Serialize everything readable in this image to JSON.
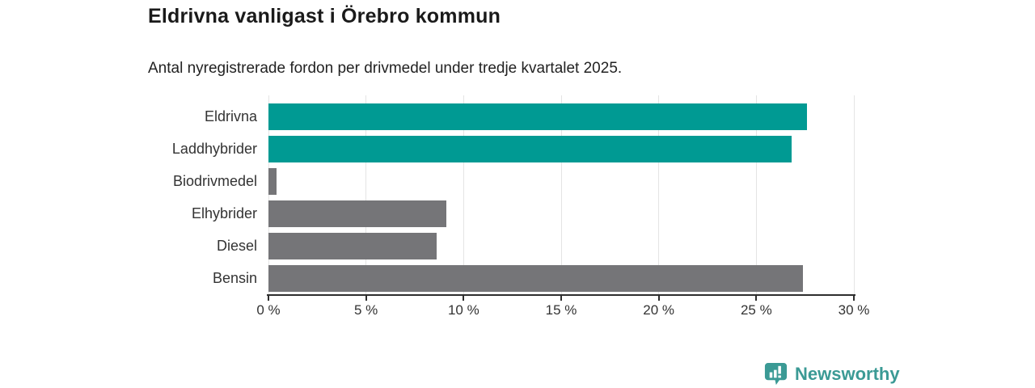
{
  "header": {
    "title": "Eldrivna vanligast i Örebro kommun",
    "subtitle": "Antal nyregistrerade fordon per drivmedel under tredje kvartalet 2025."
  },
  "chart_data": {
    "type": "bar",
    "orientation": "horizontal",
    "title": "Eldrivna vanligast i Örebro kommun",
    "subtitle": "Antal nyregistrerade fordon per drivmedel under tredje kvartalet 2025.",
    "categories": [
      "Eldrivna",
      "Laddhybrider",
      "Biodrivmedel",
      "Elhybrider",
      "Diesel",
      "Bensin"
    ],
    "values": [
      27.6,
      26.8,
      0.4,
      9.1,
      8.6,
      27.4
    ],
    "unit": "%",
    "bar_colors": [
      "#009a93",
      "#009a93",
      "#757578",
      "#757578",
      "#757578",
      "#757578"
    ],
    "highlight_color": "#009a93",
    "default_color": "#757578",
    "xlabel": "",
    "ylabel": "",
    "xlim": [
      0,
      30
    ],
    "x_ticks": [
      0,
      5,
      10,
      15,
      20,
      25,
      30
    ],
    "x_tick_labels": [
      "0 %",
      "5 %",
      "10 %",
      "15 %",
      "20 %",
      "25 %",
      "30 %"
    ],
    "grid": "vertical-only",
    "legend": "none"
  },
  "footer": {
    "brand": "Newsworthy",
    "brand_color": "#3b9a95",
    "brand_icon": "bar-chart-speech-bubble-icon"
  }
}
